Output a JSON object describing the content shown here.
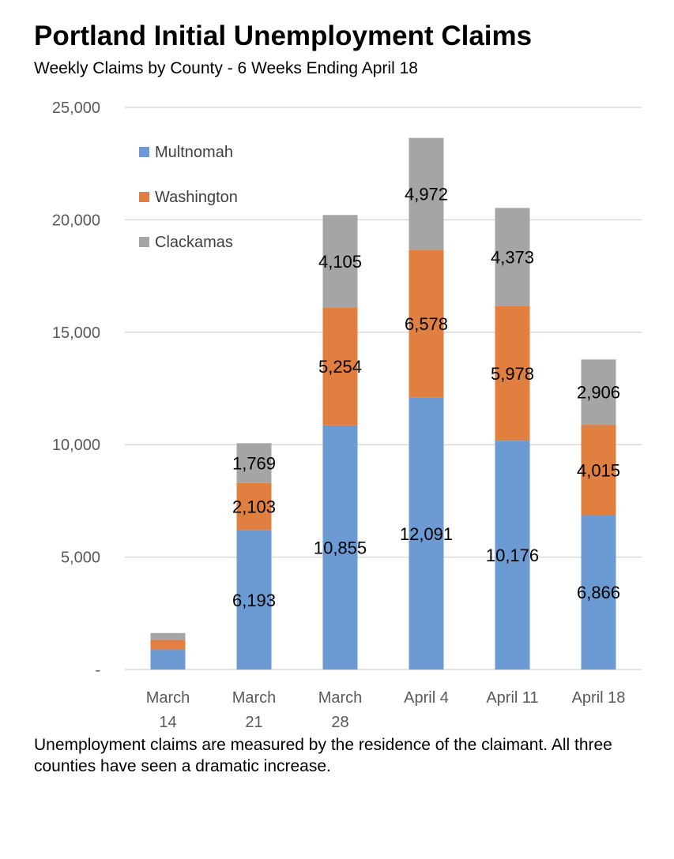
{
  "chart_data": {
    "type": "bar",
    "stacked": true,
    "title": "Portland Initial Unemployment Claims",
    "subtitle": "Weekly Claims by County - 6 Weeks Ending April 18",
    "categories": [
      [
        "March",
        "14"
      ],
      [
        "March",
        "21"
      ],
      [
        "March",
        "28"
      ],
      [
        "April 4"
      ],
      [
        "April 11"
      ],
      [
        "April 18"
      ]
    ],
    "series": [
      {
        "name": "Multnomah",
        "color": "#6b9bd2",
        "values": [
          900,
          6193,
          10855,
          12091,
          10176,
          6866
        ],
        "labels": [
          "",
          "6,193",
          "10,855",
          "12,091",
          "10,176",
          "6,866"
        ]
      },
      {
        "name": "Washington",
        "color": "#e07f3f",
        "values": [
          420,
          2103,
          5254,
          6578,
          5978,
          4015
        ],
        "labels": [
          "",
          "2,103",
          "5,254",
          "6,578",
          "5,978",
          "4,015"
        ]
      },
      {
        "name": "Clackamas",
        "color": "#a5a5a5",
        "values": [
          300,
          1769,
          4105,
          4972,
          4373,
          2906
        ],
        "labels": [
          "",
          "1,769",
          "4,105",
          "4,972",
          "4,373",
          "2,906"
        ]
      }
    ],
    "y_ticks": [
      {
        "value": 0,
        "label": "-"
      },
      {
        "value": 5000,
        "label": "5,000"
      },
      {
        "value": 10000,
        "label": "10,000"
      },
      {
        "value": 15000,
        "label": "15,000"
      },
      {
        "value": 20000,
        "label": "20,000"
      },
      {
        "value": 25000,
        "label": "25,000"
      }
    ],
    "ylim": [
      0,
      25000
    ],
    "grid": true,
    "legend_position": "top-left",
    "footnote": "Unemployment claims are measured by the residence of the claimant. All three counties have seen a dramatic increase."
  }
}
